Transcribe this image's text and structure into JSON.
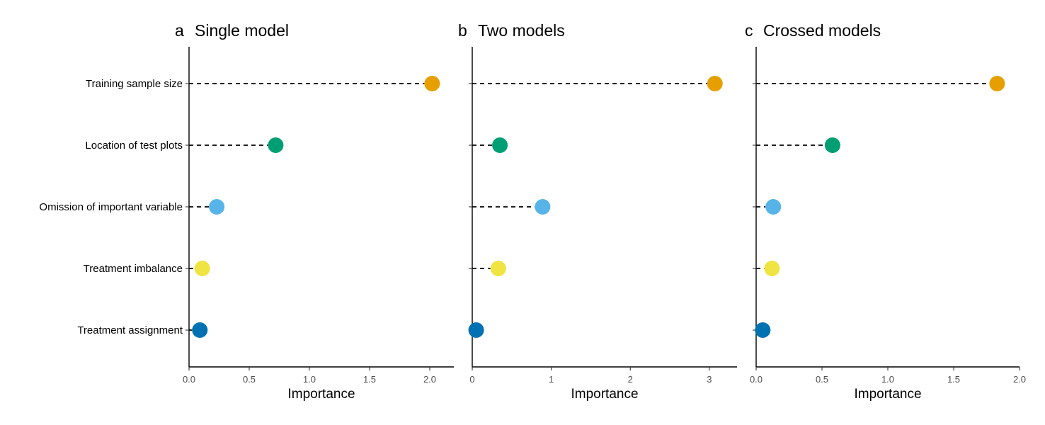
{
  "chart_data": [
    {
      "type": "scatter",
      "panel_letter": "a",
      "title": "Single model",
      "xlabel": "Importance",
      "ylabel": "",
      "xlim": [
        0,
        2.2
      ],
      "xticks": [
        "0.0",
        "0.5",
        "1.0",
        "1.5",
        "2.0"
      ],
      "xtick_values": [
        0,
        0.5,
        1.0,
        1.5,
        2.0
      ],
      "categories": [
        "Training sample size",
        "Location of test plots",
        "Omission of important variable",
        "Treatment imbalance",
        "Treatment assignment"
      ],
      "values": [
        2.02,
        0.72,
        0.23,
        0.11,
        0.09
      ],
      "colors": [
        "#E69F00",
        "#009E73",
        "#56B4E9",
        "#F0E442",
        "#0072B2"
      ],
      "grid": false,
      "legend": "none"
    },
    {
      "type": "scatter",
      "panel_letter": "b",
      "title": "Two models",
      "xlabel": "Importance",
      "ylabel": "",
      "xlim": [
        0,
        3.35
      ],
      "xticks": [
        "0",
        "1",
        "2",
        "3"
      ],
      "xtick_values": [
        0,
        1,
        2,
        3
      ],
      "categories": [
        "Training sample size",
        "Location of test plots",
        "Omission of important variable",
        "Treatment imbalance",
        "Treatment assignment"
      ],
      "values": [
        3.07,
        0.35,
        0.89,
        0.33,
        0.05
      ],
      "colors": [
        "#E69F00",
        "#009E73",
        "#56B4E9",
        "#F0E442",
        "#0072B2"
      ],
      "grid": false,
      "legend": "none"
    },
    {
      "type": "scatter",
      "panel_letter": "c",
      "title": "Crossed models",
      "xlabel": "Importance",
      "ylabel": "",
      "xlim": [
        0,
        2.0
      ],
      "xticks": [
        "0.0",
        "0.5",
        "1.0",
        "1.5",
        "2.0"
      ],
      "xtick_values": [
        0,
        0.5,
        1.0,
        1.5,
        2.0
      ],
      "categories": [
        "Training sample size",
        "Location of test plots",
        "Omission of important variable",
        "Treatment imbalance",
        "Treatment assignment"
      ],
      "values": [
        1.83,
        0.58,
        0.13,
        0.12,
        0.05
      ],
      "colors": [
        "#E69F00",
        "#009E73",
        "#56B4E9",
        "#F0E442",
        "#0072B2"
      ],
      "grid": false,
      "legend": "none"
    }
  ]
}
